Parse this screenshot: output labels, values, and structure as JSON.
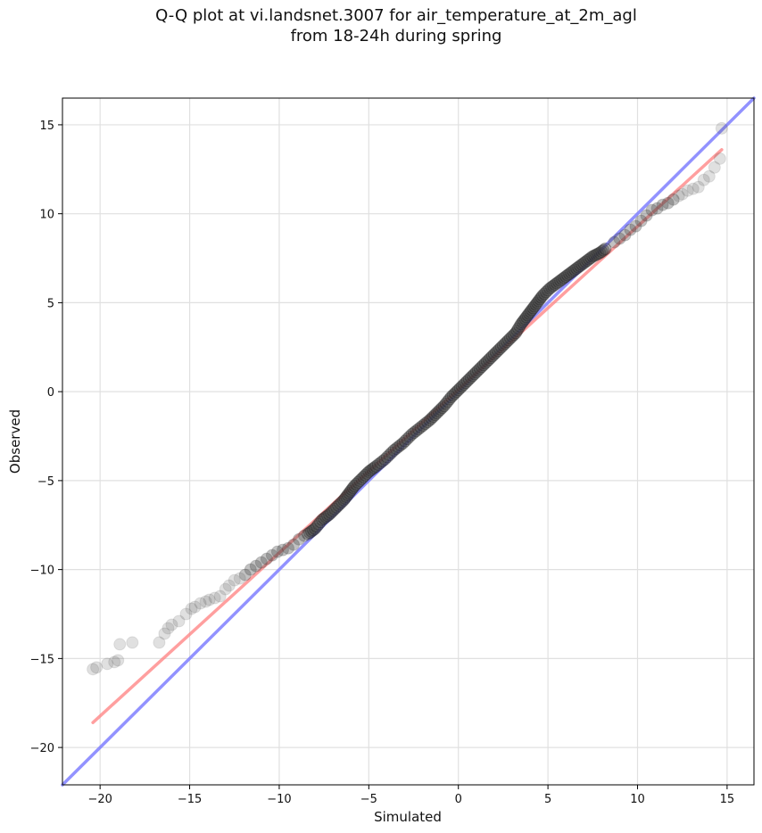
{
  "chart_data": {
    "type": "scatter",
    "title_line1": "Q-Q plot at vi.landsnet.3007 for air_temperature_at_2m_agl",
    "title_line2": "from 18-24h during spring",
    "xlabel": "Simulated",
    "ylabel": "Observed",
    "xlim": [
      -22.1,
      16.5
    ],
    "ylim": [
      -22.1,
      16.5
    ],
    "xticks": [
      -20,
      -15,
      -10,
      -5,
      0,
      5,
      10,
      15
    ],
    "yticks": [
      -20,
      -15,
      -10,
      -5,
      0,
      5,
      10,
      15
    ],
    "xtick_labels": [
      "−20",
      "−15",
      "−10",
      "−5",
      "0",
      "5",
      "10",
      "15"
    ],
    "ytick_labels": [
      "−20",
      "−15",
      "−10",
      "−5",
      "0",
      "5",
      "10",
      "15"
    ],
    "grid": true,
    "colors": {
      "points": "#404040",
      "fit_line": "#ff8080",
      "identity_line": "#8080ff",
      "grid": "#e0e0e0",
      "frame": "#000000"
    },
    "fit_line": {
      "x": [
        -20.4,
        14.7
      ],
      "y": [
        -18.6,
        13.6
      ]
    },
    "identity_line": {
      "x": [
        -22.1,
        16.5
      ],
      "y": [
        -22.1,
        16.5
      ]
    },
    "tail_points": [
      [
        -20.4,
        -15.6
      ],
      [
        -20.2,
        -15.5
      ],
      [
        -19.6,
        -15.3
      ],
      [
        -19.2,
        -15.2
      ],
      [
        -19.0,
        -15.1
      ],
      [
        -18.9,
        -14.2
      ],
      [
        -18.2,
        -14.1
      ],
      [
        -16.7,
        -14.1
      ],
      [
        -16.4,
        -13.6
      ],
      [
        -16.2,
        -13.3
      ],
      [
        -16.0,
        -13.1
      ],
      [
        -15.6,
        -12.9
      ],
      [
        -15.2,
        -12.5
      ],
      [
        -14.9,
        -12.2
      ],
      [
        -14.7,
        -12.1
      ],
      [
        -14.4,
        -11.9
      ],
      [
        -14.1,
        -11.8
      ],
      [
        -13.9,
        -11.7
      ],
      [
        -13.6,
        -11.6
      ],
      [
        -13.3,
        -11.5
      ],
      [
        -13.0,
        -11.1
      ],
      [
        -12.8,
        -10.9
      ],
      [
        -12.5,
        -10.6
      ],
      [
        -12.2,
        -10.5
      ],
      [
        -11.9,
        -10.3
      ],
      [
        -11.6,
        -10.0
      ],
      [
        -11.3,
        -9.8
      ],
      [
        -11.0,
        -9.6
      ],
      [
        -10.7,
        -9.4
      ],
      [
        -10.4,
        -9.2
      ],
      [
        -10.1,
        -9.0
      ],
      [
        -9.8,
        -8.9
      ],
      [
        -9.5,
        -8.8
      ],
      [
        -9.2,
        -8.6
      ],
      [
        -8.9,
        -8.3
      ],
      [
        -8.6,
        -8.1
      ],
      [
        8.7,
        8.4
      ],
      [
        9.0,
        8.6
      ],
      [
        9.3,
        8.8
      ],
      [
        9.6,
        9.1
      ],
      [
        9.9,
        9.3
      ],
      [
        10.2,
        9.6
      ],
      [
        10.5,
        9.9
      ],
      [
        10.8,
        10.2
      ],
      [
        11.1,
        10.3
      ],
      [
        11.4,
        10.5
      ],
      [
        11.7,
        10.6
      ],
      [
        12.0,
        10.8
      ],
      [
        12.3,
        11.0
      ],
      [
        12.5,
        11.1
      ],
      [
        12.8,
        11.3
      ],
      [
        13.1,
        11.4
      ],
      [
        13.4,
        11.5
      ],
      [
        13.7,
        11.9
      ],
      [
        14.0,
        12.1
      ],
      [
        14.3,
        12.6
      ],
      [
        14.6,
        13.1
      ],
      [
        14.7,
        14.8
      ]
    ],
    "body_points": [
      [
        -8.4,
        -8.0
      ],
      [
        -8.0,
        -7.7
      ],
      [
        -7.6,
        -7.2
      ],
      [
        -7.2,
        -6.9
      ],
      [
        -6.8,
        -6.5
      ],
      [
        -6.4,
        -6.1
      ],
      [
        -6.1,
        -5.7
      ],
      [
        -5.8,
        -5.3
      ],
      [
        -5.4,
        -4.9
      ],
      [
        -5.0,
        -4.5
      ],
      [
        -4.6,
        -4.2
      ],
      [
        -4.1,
        -3.8
      ],
      [
        -3.6,
        -3.3
      ],
      [
        -3.1,
        -2.9
      ],
      [
        -2.6,
        -2.4
      ],
      [
        -2.1,
        -2.0
      ],
      [
        -1.6,
        -1.6
      ],
      [
        -1.2,
        -1.2
      ],
      [
        -0.8,
        -0.8
      ],
      [
        -0.4,
        -0.3
      ],
      [
        0.0,
        0.1
      ],
      [
        0.4,
        0.5
      ],
      [
        0.8,
        0.9
      ],
      [
        1.2,
        1.3
      ],
      [
        1.6,
        1.7
      ],
      [
        2.0,
        2.1
      ],
      [
        2.4,
        2.5
      ],
      [
        2.8,
        2.9
      ],
      [
        3.2,
        3.3
      ],
      [
        3.5,
        3.8
      ],
      [
        3.8,
        4.2
      ],
      [
        4.1,
        4.6
      ],
      [
        4.4,
        5.0
      ],
      [
        4.7,
        5.4
      ],
      [
        5.1,
        5.8
      ],
      [
        5.5,
        6.1
      ],
      [
        5.9,
        6.4
      ],
      [
        6.3,
        6.7
      ],
      [
        6.7,
        7.0
      ],
      [
        7.1,
        7.3
      ],
      [
        7.5,
        7.6
      ],
      [
        7.9,
        7.8
      ],
      [
        8.3,
        8.1
      ]
    ]
  }
}
